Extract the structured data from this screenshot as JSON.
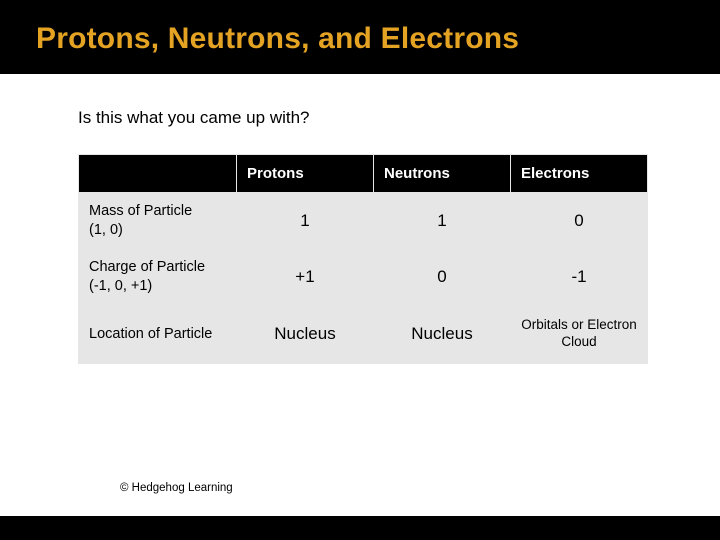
{
  "slide": {
    "title": "Protons, Neutrons, and Electrons",
    "prompt": "Is this what you came up with?",
    "copyright": "© Hedgehog Learning"
  },
  "table": {
    "columns": [
      "Protons",
      "Neutrons",
      "Electrons"
    ],
    "rows": [
      {
        "label": "Mass of Particle\n(1, 0)",
        "cells": [
          "1",
          "1",
          "0"
        ],
        "small": [
          false,
          false,
          false
        ]
      },
      {
        "label": "Charge of Particle\n(-1, 0, +1)",
        "cells": [
          "+1",
          "0",
          "-1"
        ],
        "small": [
          false,
          false,
          false
        ]
      },
      {
        "label": "Location of Particle",
        "cells": [
          "Nucleus",
          "Nucleus",
          "Orbitals or Electron Cloud"
        ],
        "small": [
          false,
          false,
          true
        ]
      }
    ]
  },
  "style": {
    "title_color": "#e5a323",
    "title_bg": "#000000",
    "content_bg": "#ffffff",
    "cell_bg": "#e6e6e6",
    "header_bg": "#000000",
    "header_fg": "#ffffff",
    "title_fontsize": 30,
    "prompt_fontsize": 17,
    "cell_fontsize": 17,
    "small_cell_fontsize": 13.5
  }
}
